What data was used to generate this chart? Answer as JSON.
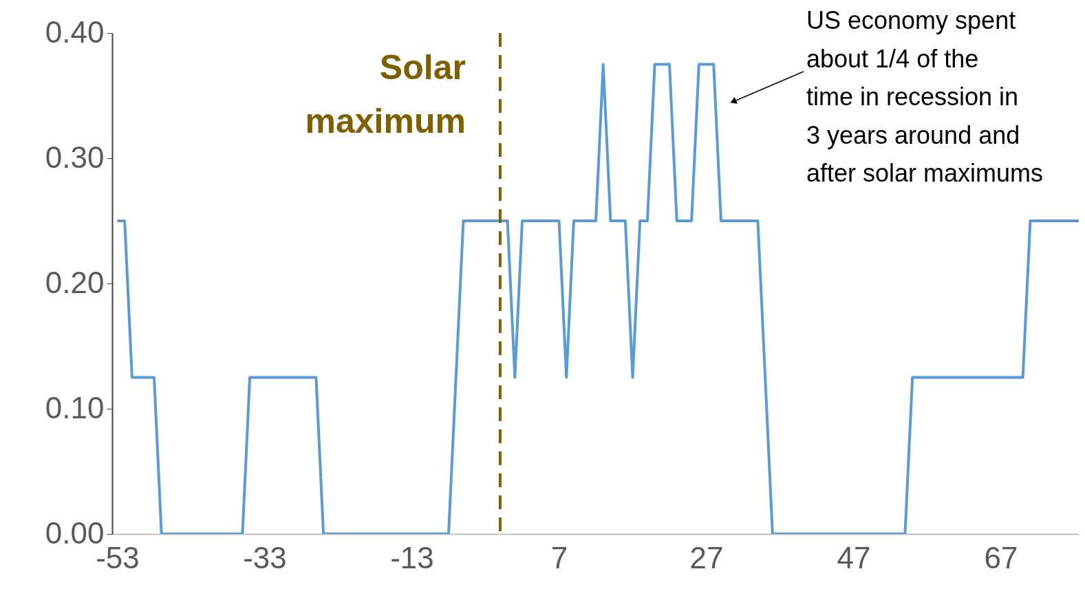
{
  "chart_data": {
    "type": "line",
    "x": [
      -53,
      -52,
      -51,
      -48,
      -47,
      -36,
      -35,
      -26,
      -25,
      -8,
      -6,
      0,
      1,
      2,
      7,
      8,
      9,
      12,
      13,
      14,
      16,
      17,
      18,
      19,
      20,
      22,
      23,
      25,
      26,
      28,
      29,
      34,
      36,
      54,
      55,
      70,
      71,
      77.6
    ],
    "series": [
      {
        "color": "#5b9bd5",
        "values": [
          0.25,
          0.25,
          0.125,
          0.125,
          0,
          0,
          0.125,
          0.125,
          0,
          0,
          0.25,
          0.25,
          0.125,
          0.25,
          0.25,
          0.125,
          0.25,
          0.25,
          0.375,
          0.25,
          0.25,
          0.125,
          0.25,
          0.25,
          0.375,
          0.375,
          0.25,
          0.25,
          0.375,
          0.375,
          0.25,
          0.25,
          0,
          0,
          0.125,
          0.125,
          0.25,
          0.25
        ]
      }
    ],
    "xlim": [
      -53.7,
      77.6
    ],
    "xticks": [
      -53,
      -33,
      -13,
      7,
      27,
      47,
      67
    ],
    "ylim": [
      0,
      0.4
    ],
    "yticks": [
      {
        "value": 0,
        "label": "0.00"
      },
      {
        "value": 0.1,
        "label": "0.10"
      },
      {
        "value": 0.2,
        "label": "0.20"
      },
      {
        "value": 0.3,
        "label": "0.30"
      },
      {
        "value": 0.4,
        "label": "0.40"
      }
    ],
    "grid": false,
    "marker": "none",
    "line_style": "solid",
    "ref_lines": [
      {
        "axis": "x",
        "value": -1,
        "label": "Solar maximum",
        "color": "#7f6000",
        "line_style": "dashed"
      }
    ],
    "annotations": [
      "US economy spent about 1/4 of the time in recession in 3 years around and after solar maximums"
    ]
  }
}
